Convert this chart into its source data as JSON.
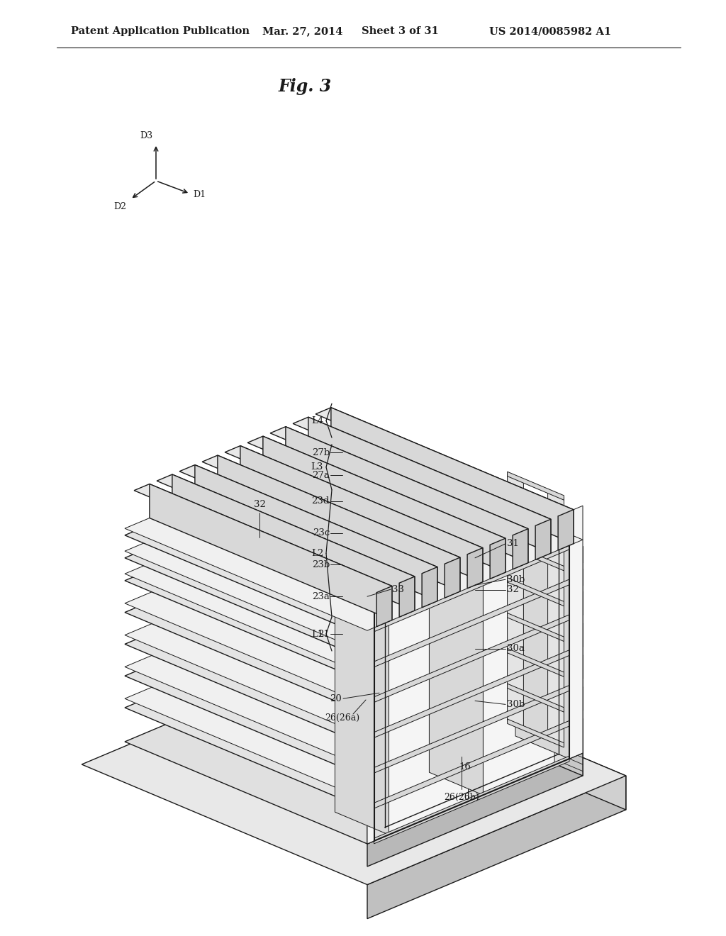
{
  "bg_color": "#ffffff",
  "lc": "#1a1a1a",
  "header_text": "Patent Application Publication",
  "header_date": "Mar. 27, 2014",
  "header_sheet": "Sheet 3 of 31",
  "header_patent": "US 2014/0085982 A1",
  "fig_label": "Fig. 3",
  "fc_white": "#ffffff",
  "fc_light": "#f2f2f2",
  "fc_mid": "#e0e0e0",
  "fc_dark": "#c8c8c8",
  "fc_darker": "#b8b8b8",
  "fc_bar_top": "#e8e8e8",
  "fc_bar_front": "#d0d0d0",
  "fc_frame": "#e0e0e0",
  "fc_base": "#d8d8d8"
}
